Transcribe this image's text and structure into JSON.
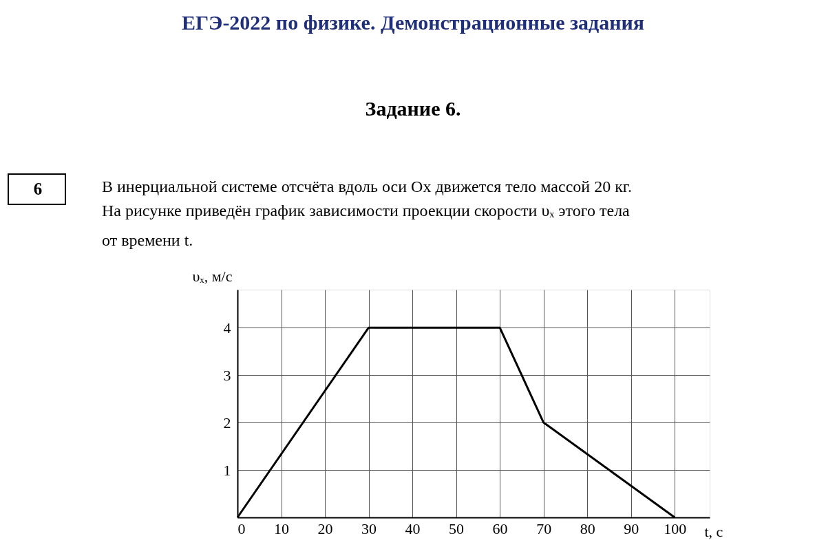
{
  "chart_data": {
    "type": "line",
    "title": "ЕГЭ-2022 по физике. Демонстрационные задания",
    "subtitle": "Задание 6.",
    "annotations": [
      "6",
      "В инерциальной системе отсчёта вдоль оси Ox движется тело массой 20 кг.",
      "На рисунке приведён график зависимости проекции скорости υₓ этого тела",
      "от времени t."
    ],
    "xlabel": "t, с",
    "ylabel": "υₓ, м/с",
    "x": [
      0,
      30,
      60,
      70,
      100
    ],
    "values": [
      0,
      4,
      4,
      2,
      0
    ],
    "color": "#000000",
    "xlim": [
      0,
      108
    ],
    "ylim": [
      0,
      4.8
    ],
    "xticks": [
      0,
      10,
      20,
      30,
      40,
      50,
      60,
      70,
      80,
      90,
      100
    ],
    "yticks": [
      1,
      2,
      3,
      4
    ],
    "grid": true,
    "marker": "none",
    "line_style": "solid"
  }
}
